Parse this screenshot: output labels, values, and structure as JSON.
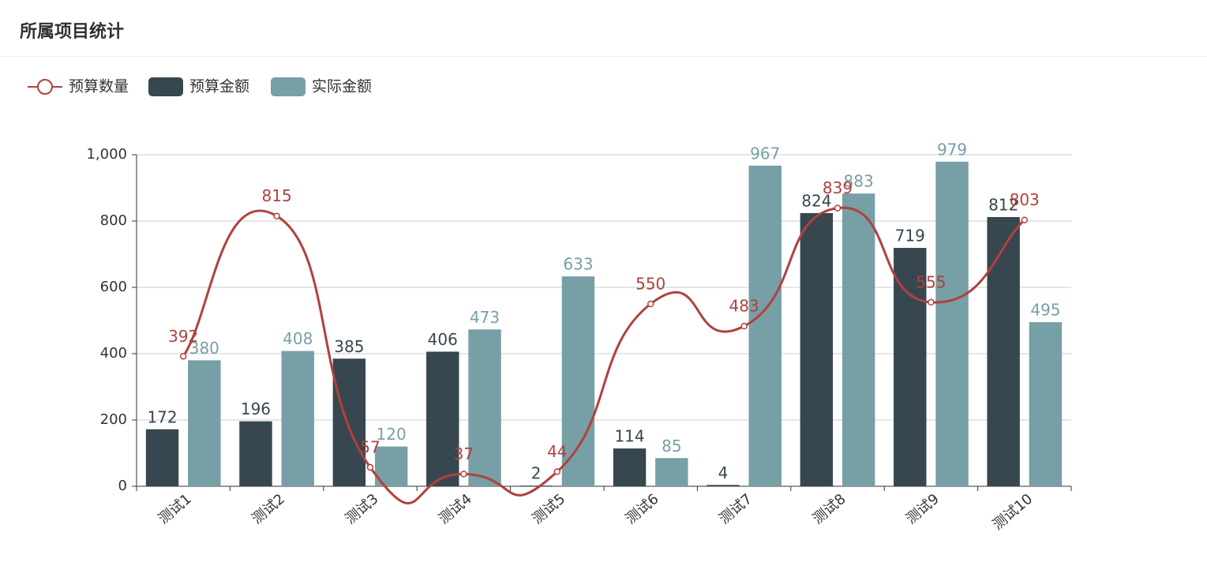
{
  "header": {
    "title": "所属项目统计"
  },
  "chart_data": {
    "type": "bar",
    "categories": [
      "测试1",
      "测试2",
      "测试3",
      "测试4",
      "测试5",
      "测试6",
      "测试7",
      "测试8",
      "测试9",
      "测试10"
    ],
    "series": [
      {
        "name": "预算数量",
        "type": "line",
        "smooth": true,
        "color": "#b0413e",
        "values": [
          392,
          815,
          57,
          37,
          44,
          550,
          483,
          839,
          555,
          803
        ]
      },
      {
        "name": "预算金额",
        "type": "bar",
        "color": "#37474f",
        "values": [
          172,
          196,
          385,
          406,
          2,
          114,
          4,
          824,
          719,
          812
        ]
      },
      {
        "name": "实际金额",
        "type": "bar",
        "color": "#779fa6",
        "values": [
          380,
          408,
          120,
          473,
          633,
          85,
          967,
          883,
          979,
          495
        ]
      }
    ],
    "ylim": [
      0,
      1000
    ],
    "yticks": [
      0,
      200,
      400,
      600,
      800,
      {
        "value": 1000,
        "label": "1,000"
      }
    ],
    "grid": true
  }
}
